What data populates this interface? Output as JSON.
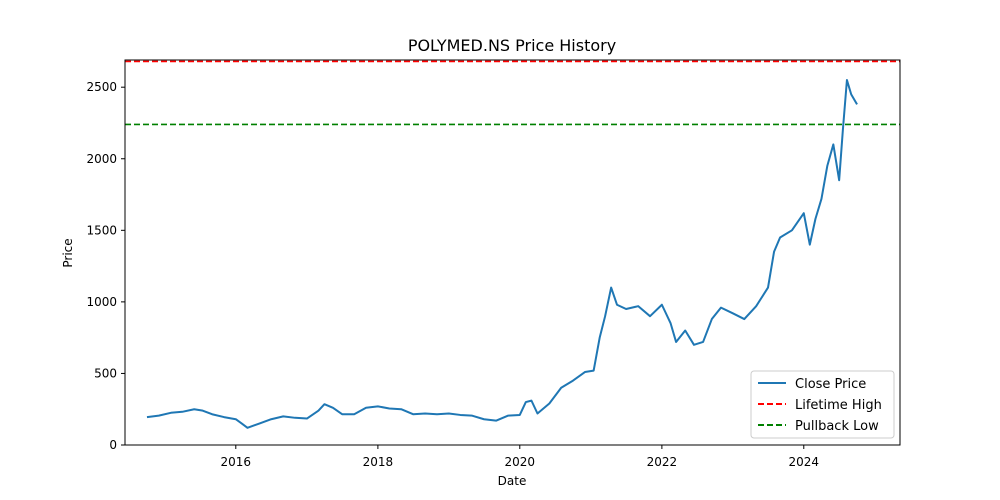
{
  "chart_data": {
    "type": "line",
    "title": "POLYMED.NS Price History",
    "xlabel": "Date",
    "ylabel": "Price",
    "xlim": [
      "2014-06-10",
      "2025-05-10"
    ],
    "ylim": [
      0,
      2690
    ],
    "xticks": [
      "2016",
      "2018",
      "2020",
      "2022",
      "2024"
    ],
    "yticks": [
      0,
      500,
      1000,
      1500,
      2000,
      2500
    ],
    "grid": false,
    "legend_position": "lower-right",
    "series": [
      {
        "name": "Close Price",
        "kind": "line",
        "color": "#1f77b4",
        "points": [
          [
            "2014-10-01",
            195
          ],
          [
            "2014-12-01",
            205
          ],
          [
            "2015-02-01",
            225
          ],
          [
            "2015-04-01",
            232
          ],
          [
            "2015-06-01",
            250
          ],
          [
            "2015-07-15",
            240
          ],
          [
            "2015-09-01",
            215
          ],
          [
            "2015-11-01",
            195
          ],
          [
            "2016-01-01",
            180
          ],
          [
            "2016-02-01",
            150
          ],
          [
            "2016-03-01",
            120
          ],
          [
            "2016-05-01",
            150
          ],
          [
            "2016-07-01",
            180
          ],
          [
            "2016-09-01",
            200
          ],
          [
            "2016-11-01",
            190
          ],
          [
            "2017-01-01",
            185
          ],
          [
            "2017-03-01",
            240
          ],
          [
            "2017-04-01",
            285
          ],
          [
            "2017-05-15",
            260
          ],
          [
            "2017-07-01",
            215
          ],
          [
            "2017-09-01",
            215
          ],
          [
            "2017-11-01",
            260
          ],
          [
            "2018-01-01",
            270
          ],
          [
            "2018-03-01",
            255
          ],
          [
            "2018-05-01",
            250
          ],
          [
            "2018-07-01",
            215
          ],
          [
            "2018-09-01",
            220
          ],
          [
            "2018-11-01",
            215
          ],
          [
            "2019-01-01",
            220
          ],
          [
            "2019-03-01",
            210
          ],
          [
            "2019-05-01",
            205
          ],
          [
            "2019-07-01",
            180
          ],
          [
            "2019-09-01",
            170
          ],
          [
            "2019-11-01",
            205
          ],
          [
            "2020-01-01",
            210
          ],
          [
            "2020-02-01",
            300
          ],
          [
            "2020-03-01",
            310
          ],
          [
            "2020-04-01",
            220
          ],
          [
            "2020-06-01",
            290
          ],
          [
            "2020-08-01",
            400
          ],
          [
            "2020-10-01",
            450
          ],
          [
            "2020-12-01",
            510
          ],
          [
            "2021-01-15",
            520
          ],
          [
            "2021-02-15",
            750
          ],
          [
            "2021-03-15",
            900
          ],
          [
            "2021-04-15",
            1100
          ],
          [
            "2021-05-15",
            980
          ],
          [
            "2021-07-01",
            950
          ],
          [
            "2021-09-01",
            970
          ],
          [
            "2021-11-01",
            900
          ],
          [
            "2022-01-01",
            980
          ],
          [
            "2022-02-15",
            850
          ],
          [
            "2022-03-15",
            720
          ],
          [
            "2022-05-01",
            800
          ],
          [
            "2022-06-15",
            700
          ],
          [
            "2022-08-01",
            720
          ],
          [
            "2022-09-15",
            880
          ],
          [
            "2022-11-01",
            960
          ],
          [
            "2023-01-01",
            920
          ],
          [
            "2023-03-01",
            880
          ],
          [
            "2023-05-01",
            970
          ],
          [
            "2023-07-01",
            1100
          ],
          [
            "2023-08-01",
            1350
          ],
          [
            "2023-09-01",
            1450
          ],
          [
            "2023-11-01",
            1500
          ],
          [
            "2024-01-01",
            1620
          ],
          [
            "2024-02-01",
            1400
          ],
          [
            "2024-03-01",
            1580
          ],
          [
            "2024-04-01",
            1720
          ],
          [
            "2024-05-01",
            1950
          ],
          [
            "2024-06-01",
            2100
          ],
          [
            "2024-07-01",
            1850
          ],
          [
            "2024-07-20",
            2200
          ],
          [
            "2024-08-10",
            2550
          ],
          [
            "2024-09-01",
            2450
          ],
          [
            "2024-10-01",
            2380
          ]
        ]
      },
      {
        "name": "Lifetime High",
        "kind": "hline",
        "color": "#ff0000",
        "value": 2680
      },
      {
        "name": "Pullback Low",
        "kind": "hline",
        "color": "#008000",
        "value": 2240
      }
    ]
  }
}
